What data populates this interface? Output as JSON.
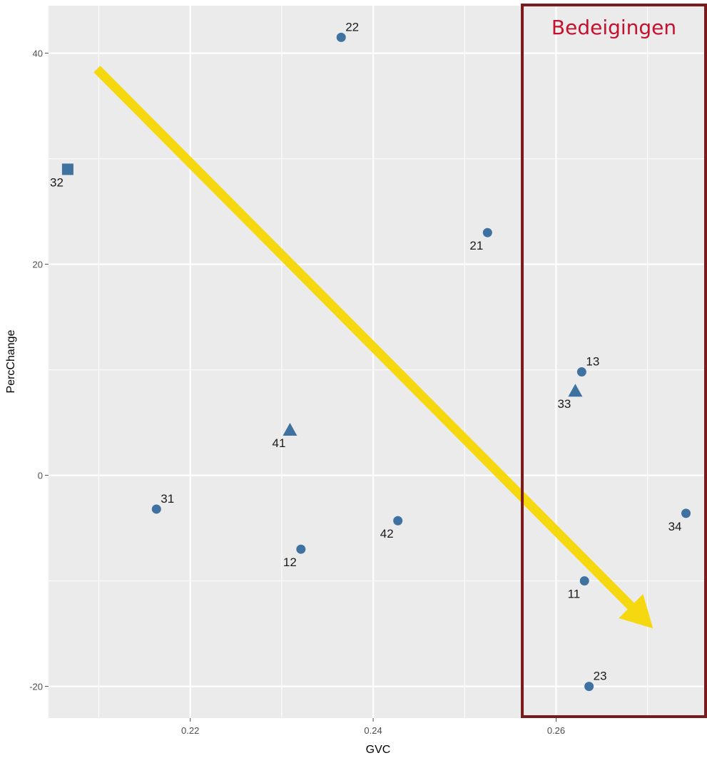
{
  "chart_data": {
    "type": "scatter",
    "xlabel": "GVC",
    "ylabel": "PercChange",
    "xlim": [
      0.2045,
      0.2765
    ],
    "ylim": [
      -23,
      44.5
    ],
    "x_ticks": [
      0.22,
      0.24,
      0.26
    ],
    "x_tick_labels": [
      "0.22",
      "0.24",
      "0.26"
    ],
    "y_ticks": [
      -20,
      0,
      20,
      40
    ],
    "y_tick_labels": [
      "-20",
      "0",
      "20",
      "40"
    ],
    "grid": true,
    "points": [
      {
        "label": "22",
        "x": 0.2365,
        "y": 41.5,
        "shape": "circle"
      },
      {
        "label": "32",
        "x": 0.2066,
        "y": 29.0,
        "shape": "square"
      },
      {
        "label": "21",
        "x": 0.2525,
        "y": 23.0,
        "shape": "circle"
      },
      {
        "label": "13",
        "x": 0.2628,
        "y": 9.8,
        "shape": "circle"
      },
      {
        "label": "33",
        "x": 0.2621,
        "y": 8.0,
        "shape": "triangle"
      },
      {
        "label": "41",
        "x": 0.2309,
        "y": 4.3,
        "shape": "triangle"
      },
      {
        "label": "31",
        "x": 0.2163,
        "y": -3.2,
        "shape": "circle"
      },
      {
        "label": "42",
        "x": 0.2427,
        "y": -4.3,
        "shape": "circle"
      },
      {
        "label": "34",
        "x": 0.2742,
        "y": -3.6,
        "shape": "circle"
      },
      {
        "label": "12",
        "x": 0.2321,
        "y": -7.0,
        "shape": "circle"
      },
      {
        "label": "11",
        "x": 0.2631,
        "y": -10.0,
        "shape": "circle"
      },
      {
        "label": "23",
        "x": 0.2636,
        "y": -20.0,
        "shape": "circle"
      }
    ],
    "annotations": {
      "trend_arrow": {
        "from": {
          "x": 0.2098,
          "y": 38.5
        },
        "to": {
          "x": 0.2706,
          "y": -14.5
        },
        "color": "#f5d80f"
      },
      "highlight_box": {
        "x_from": 0.2563,
        "label": "Bedeigingen",
        "border_color": "#7b1a1a",
        "label_color": "#c8102e"
      }
    },
    "colors": {
      "panel": "#ebebeb",
      "grid": "#ffffff",
      "point": "#3f72a1"
    }
  }
}
